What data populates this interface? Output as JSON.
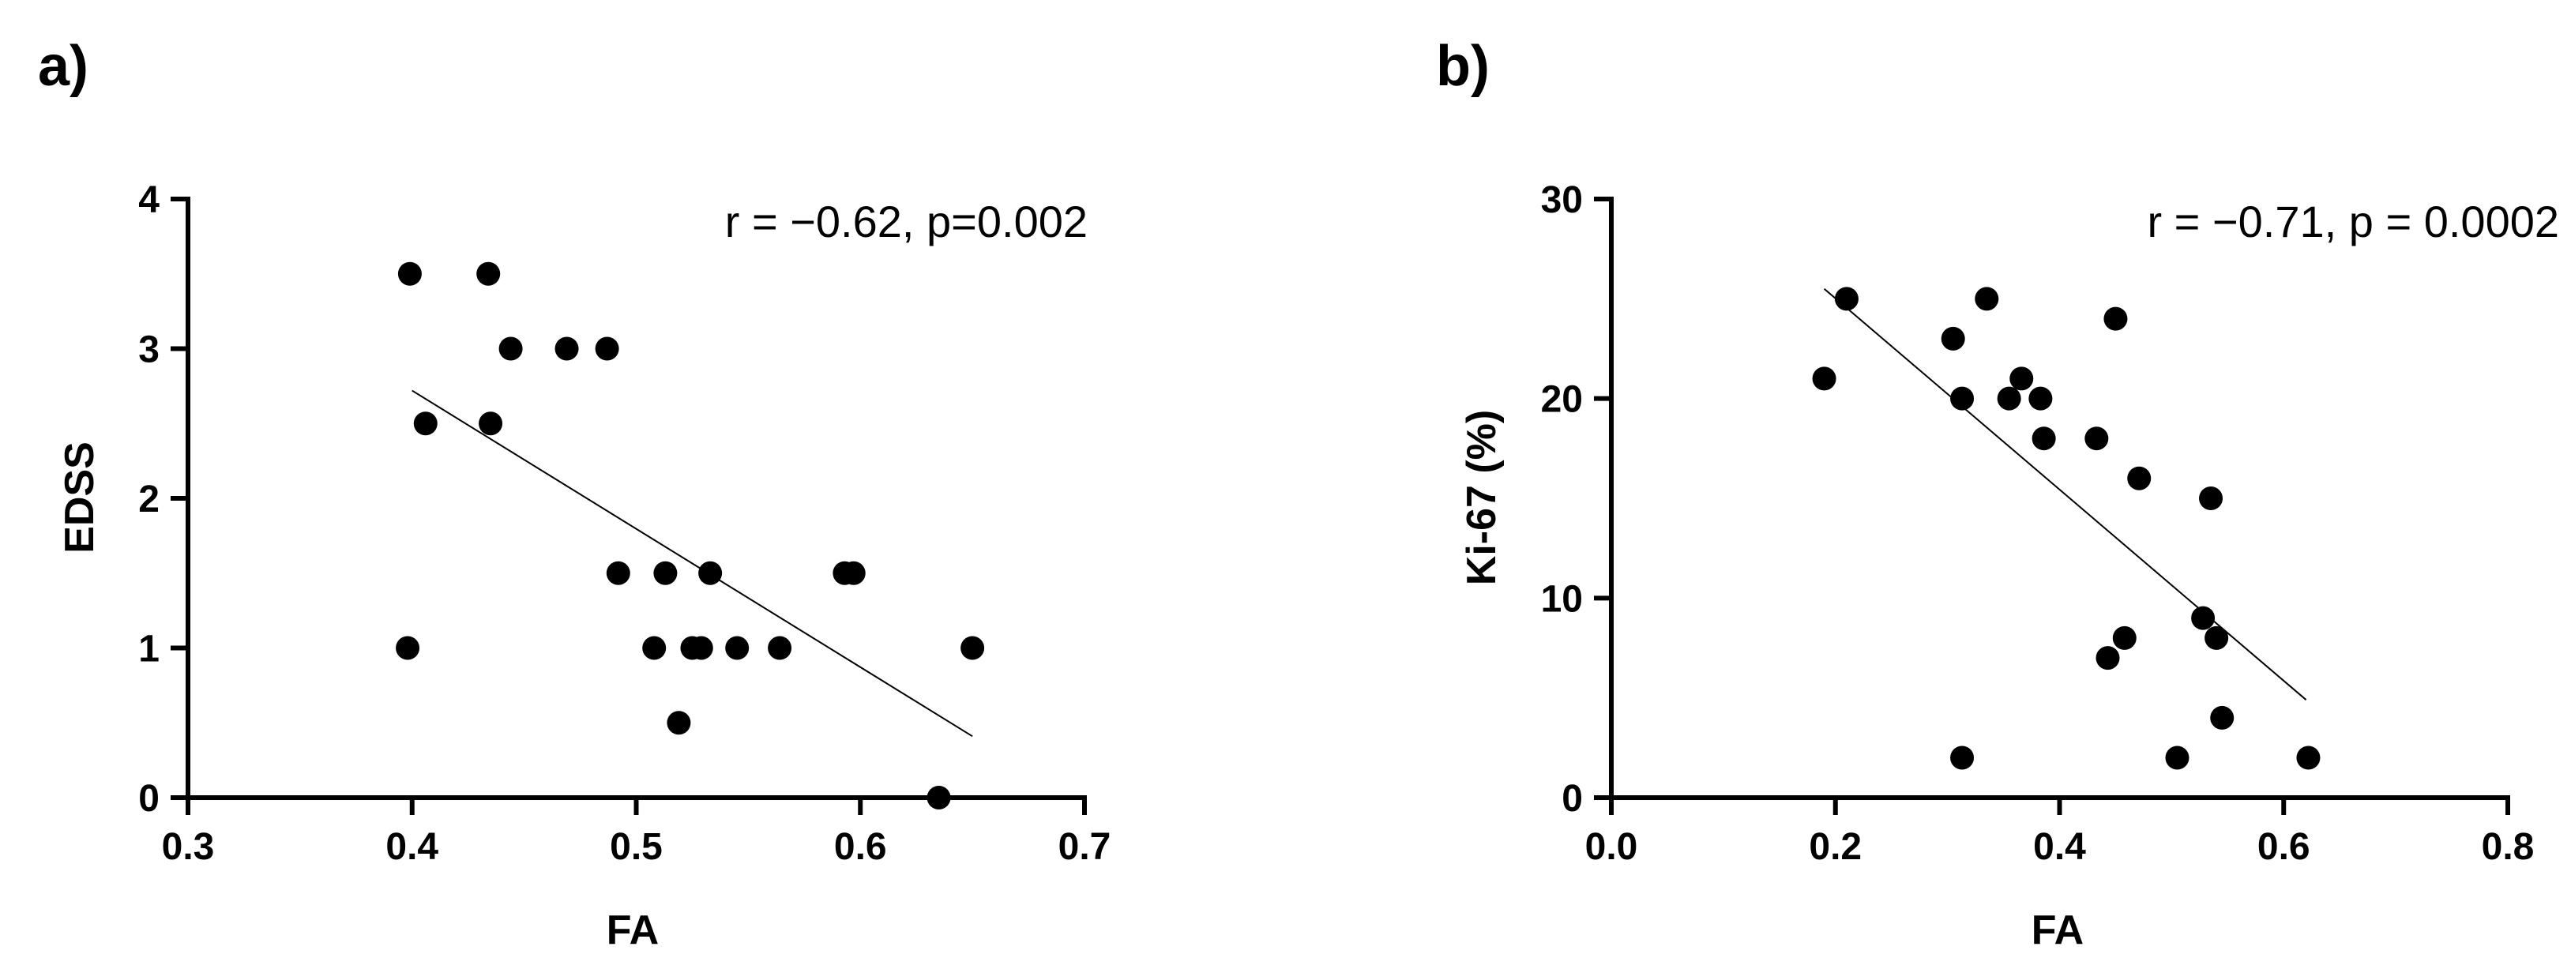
{
  "chart_data": [
    {
      "type": "scatter",
      "panel_label": "a)",
      "xlabel": "FA",
      "ylabel": "EDSS",
      "xlim": [
        0.3,
        0.7
      ],
      "ylim": [
        0,
        4
      ],
      "xticks": [
        "0.3",
        "0.4",
        "0.5",
        "0.6",
        "0.7"
      ],
      "yticks": [
        "0",
        "1",
        "2",
        "3",
        "4"
      ],
      "annotation": "r = −0.62, p=0.002",
      "grid": false,
      "points": [
        {
          "x": 0.398,
          "y": 1.0
        },
        {
          "x": 0.399,
          "y": 3.5
        },
        {
          "x": 0.406,
          "y": 2.5
        },
        {
          "x": 0.434,
          "y": 3.5
        },
        {
          "x": 0.435,
          "y": 2.5
        },
        {
          "x": 0.444,
          "y": 3.0
        },
        {
          "x": 0.469,
          "y": 3.0
        },
        {
          "x": 0.487,
          "y": 3.0
        },
        {
          "x": 0.492,
          "y": 1.5
        },
        {
          "x": 0.508,
          "y": 1.0
        },
        {
          "x": 0.513,
          "y": 1.5
        },
        {
          "x": 0.519,
          "y": 0.5
        },
        {
          "x": 0.525,
          "y": 1.0
        },
        {
          "x": 0.529,
          "y": 1.0
        },
        {
          "x": 0.533,
          "y": 1.5
        },
        {
          "x": 0.545,
          "y": 1.0
        },
        {
          "x": 0.564,
          "y": 1.0
        },
        {
          "x": 0.593,
          "y": 1.5
        },
        {
          "x": 0.597,
          "y": 1.5
        },
        {
          "x": 0.635,
          "y": 0.0
        },
        {
          "x": 0.65,
          "y": 1.0
        }
      ],
      "fit_line": {
        "x": [
          0.4,
          0.65
        ],
        "y": [
          2.72,
          0.41
        ]
      }
    },
    {
      "type": "scatter",
      "panel_label": "b)",
      "xlabel": "FA",
      "ylabel": "Ki-67 (%)",
      "xlim": [
        0.0,
        0.8
      ],
      "ylim": [
        0,
        30
      ],
      "xticks": [
        "0.0",
        "0.2",
        "0.4",
        "0.6",
        "0.8"
      ],
      "yticks": [
        "0",
        "10",
        "20",
        "30"
      ],
      "annotation": "r = −0.71, p = 0.0002",
      "grid": false,
      "points": [
        {
          "x": 0.19,
          "y": 21
        },
        {
          "x": 0.21,
          "y": 25
        },
        {
          "x": 0.305,
          "y": 23
        },
        {
          "x": 0.313,
          "y": 20
        },
        {
          "x": 0.313,
          "y": 2
        },
        {
          "x": 0.335,
          "y": 25
        },
        {
          "x": 0.355,
          "y": 20
        },
        {
          "x": 0.366,
          "y": 21
        },
        {
          "x": 0.383,
          "y": 20
        },
        {
          "x": 0.386,
          "y": 18
        },
        {
          "x": 0.433,
          "y": 18
        },
        {
          "x": 0.443,
          "y": 7
        },
        {
          "x": 0.45,
          "y": 24
        },
        {
          "x": 0.458,
          "y": 8
        },
        {
          "x": 0.471,
          "y": 16
        },
        {
          "x": 0.505,
          "y": 2
        },
        {
          "x": 0.528,
          "y": 9
        },
        {
          "x": 0.535,
          "y": 15
        },
        {
          "x": 0.54,
          "y": 8
        },
        {
          "x": 0.545,
          "y": 4
        },
        {
          "x": 0.622,
          "y": 2
        }
      ],
      "fit_line": {
        "x": [
          0.19,
          0.62
        ],
        "y": [
          25.5,
          4.9
        ]
      }
    }
  ]
}
